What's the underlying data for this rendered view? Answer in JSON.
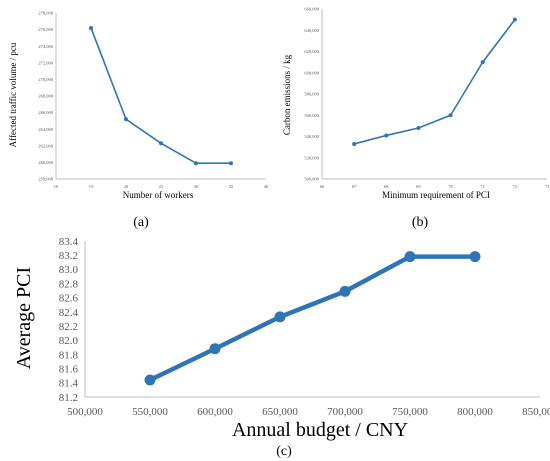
{
  "chart_data": [
    {
      "type": "line",
      "caption": "(a)",
      "xlabel": "Number of workers",
      "ylabel": "Affected traffic volume / pcu",
      "x": [
        15,
        20,
        25,
        30,
        35
      ],
      "values": [
        276200,
        265200,
        262300,
        259900,
        259900
      ],
      "xlim": [
        10,
        40
      ],
      "ylim": [
        258000,
        278000
      ],
      "xticks": [
        10,
        15,
        20,
        25,
        30,
        35,
        40
      ],
      "yticks": [
        258000,
        260000,
        262000,
        264000,
        266000,
        268000,
        270000,
        272000,
        274000,
        276000,
        278000
      ],
      "xtick_labels": [
        "10",
        "15",
        "20",
        "25",
        "30",
        "35",
        "40"
      ],
      "ytick_labels": [
        "258,000",
        "260,000",
        "262,000",
        "264,000",
        "266,000",
        "268,000",
        "270,000",
        "272,000",
        "274,000",
        "276,000",
        "278,000"
      ],
      "grid": false,
      "color": "#2E75B6"
    },
    {
      "type": "line",
      "caption": "(b)",
      "xlabel": "Minimum requirement of PCI",
      "ylabel": "Carbon emissions / kg",
      "x": [
        67,
        68,
        69,
        70,
        71,
        72
      ],
      "values": [
        533000,
        541000,
        548000,
        560000,
        610000,
        650000
      ],
      "xlim": [
        66,
        73
      ],
      "ylim": [
        500000,
        660000
      ],
      "xticks": [
        66,
        67,
        68,
        69,
        70,
        71,
        72,
        73
      ],
      "yticks": [
        500000,
        520000,
        540000,
        560000,
        580000,
        600000,
        620000,
        640000,
        660000
      ],
      "xtick_labels": [
        "66",
        "67",
        "68",
        "69",
        "70",
        "71",
        "72",
        "73"
      ],
      "ytick_labels": [
        "500,000",
        "520,000",
        "540,000",
        "560,000",
        "580,000",
        "600,000",
        "620,000",
        "640,000",
        "660,000"
      ],
      "grid": false,
      "color": "#2E75B6"
    },
    {
      "type": "line",
      "caption": "(c)",
      "xlabel": "Annual budget / CNY",
      "ylabel": "Average PCI",
      "x": [
        550000,
        600000,
        650000,
        700000,
        750000,
        800000
      ],
      "values": [
        81.44,
        81.88,
        82.33,
        82.69,
        83.18,
        83.18
      ],
      "xlim": [
        500000,
        850000
      ],
      "ylim": [
        81.2,
        83.4
      ],
      "xticks": [
        500000,
        550000,
        600000,
        650000,
        700000,
        750000,
        800000,
        850000
      ],
      "yticks": [
        81.2,
        81.4,
        81.6,
        81.8,
        82.0,
        82.2,
        82.4,
        82.6,
        82.8,
        83.0,
        83.2,
        83.4
      ],
      "xtick_labels": [
        "500,000",
        "550,000",
        "600,000",
        "650,000",
        "700,000",
        "750,000",
        "800,000",
        "850,000"
      ],
      "ytick_labels": [
        "81.2",
        "81.4",
        "81.6",
        "81.8",
        "82.0",
        "82.2",
        "82.4",
        "82.6",
        "82.8",
        "83.0",
        "83.2",
        "83.4"
      ],
      "grid": false,
      "color": "#2E75B6"
    }
  ]
}
